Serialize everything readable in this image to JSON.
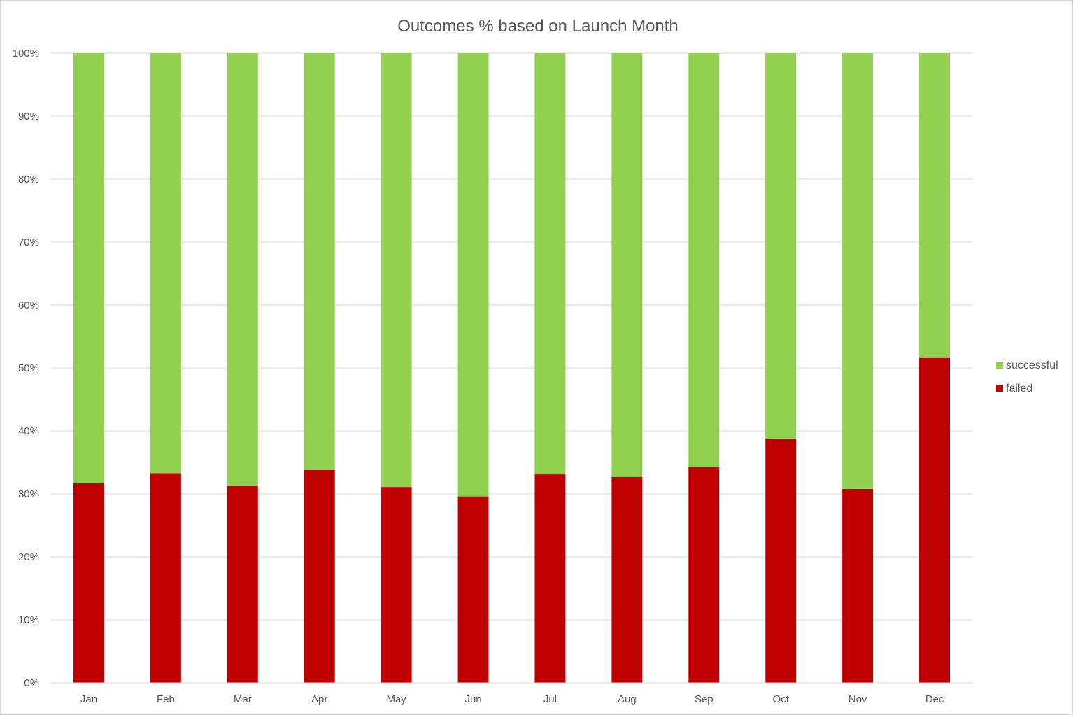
{
  "chart_data": {
    "type": "bar",
    "stacked": true,
    "title": "Outcomes % based on Launch Month",
    "categories": [
      "Jan",
      "Feb",
      "Mar",
      "Apr",
      "May",
      "Jun",
      "Jul",
      "Aug",
      "Sep",
      "Oct",
      "Nov",
      "Dec"
    ],
    "series": [
      {
        "name": "failed",
        "color": "#c00000",
        "values": [
          31.7,
          33.3,
          31.3,
          33.8,
          31.1,
          29.6,
          33.1,
          32.7,
          34.3,
          38.8,
          30.8,
          51.7
        ]
      },
      {
        "name": "successful",
        "color": "#92d050",
        "values": [
          68.3,
          66.7,
          68.7,
          66.2,
          68.9,
          70.4,
          66.9,
          67.3,
          65.7,
          61.2,
          69.2,
          48.3
        ]
      }
    ],
    "y_ticks": [
      "0%",
      "10%",
      "20%",
      "30%",
      "40%",
      "50%",
      "60%",
      "70%",
      "80%",
      "90%",
      "100%"
    ],
    "ylim": [
      0,
      100
    ],
    "grid": true,
    "legend": {
      "position": "right",
      "entries": [
        "successful",
        "failed"
      ]
    }
  }
}
